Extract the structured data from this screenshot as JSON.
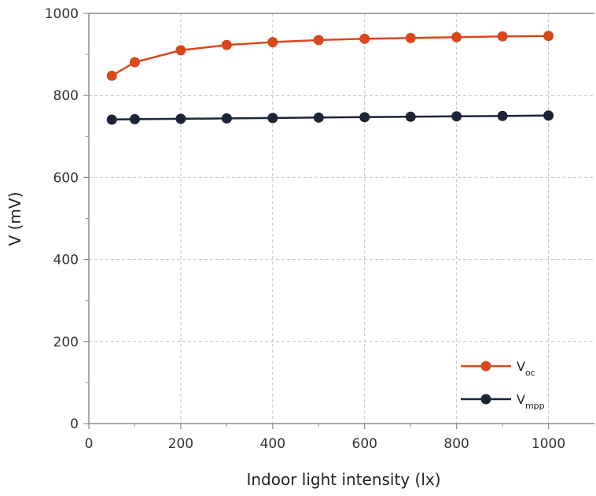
{
  "chart_data": {
    "type": "line",
    "xlabel": "Indoor light intensity (lx)",
    "ylabel": "V (mV)",
    "xlim": [
      0,
      1100
    ],
    "ylim": [
      0,
      1000
    ],
    "x_ticks": [
      "0",
      "200",
      "400",
      "600",
      "800",
      "1000"
    ],
    "y_ticks": [
      "0",
      "200",
      "400",
      "600",
      "800",
      "1000"
    ],
    "grid": true,
    "legend_position": "bottom-right",
    "x": [
      50,
      100,
      200,
      300,
      400,
      500,
      600,
      700,
      800,
      900,
      1000
    ],
    "series": [
      {
        "name": "V",
        "name_subscript": "oc",
        "color": "#d9481c",
        "values": [
          848,
          881,
          910,
          923,
          930,
          935,
          938,
          940,
          942,
          944,
          945
        ]
      },
      {
        "name": "V",
        "name_subscript": "mpp",
        "color": "#1c2437",
        "values": [
          741,
          742,
          743,
          744,
          745,
          746,
          747,
          748,
          749,
          750,
          751
        ]
      }
    ]
  }
}
